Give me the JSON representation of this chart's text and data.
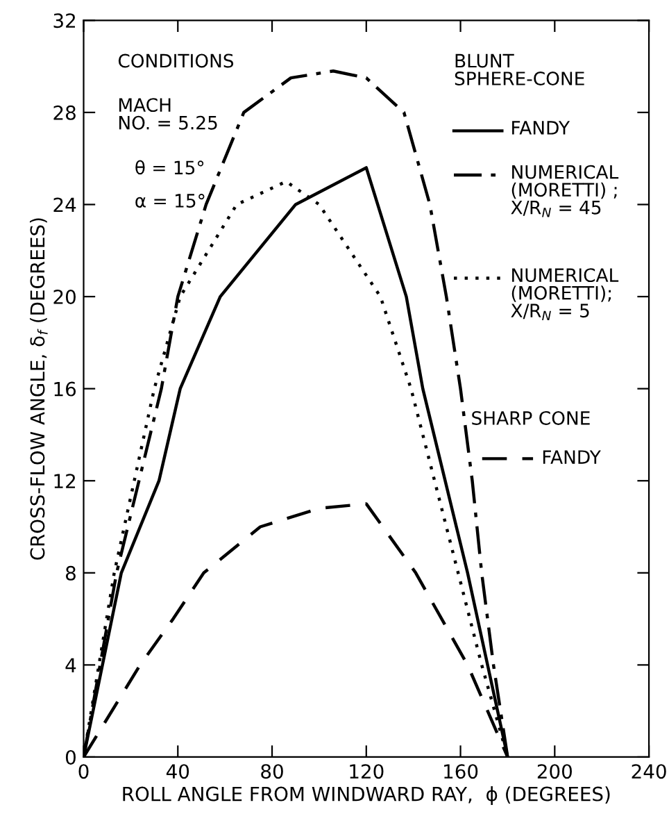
{
  "chart_data": {
    "type": "line",
    "xlabel": "ROLL ANGLE FROM WINDWARD RAY,  ϕ (DEGREES)",
    "ylabel": "CROSS-FLOW ANGLE, δ$_{f}$ (DEGREES)",
    "xlim": [
      0,
      240
    ],
    "xticks": [
      0,
      40,
      80,
      120,
      160,
      200,
      240
    ],
    "ylim": [
      0,
      32
    ],
    "yticks": [
      0,
      4,
      8,
      12,
      16,
      20,
      24,
      28,
      32
    ],
    "grid": false,
    "legend": "top right",
    "marker": "none",
    "annotations": [
      "CONDITIONS",
      "MACH\nNO. = 5.25",
      "θ = 15°",
      "α = 15°",
      "BLUNT\nSPHERE-CONE",
      "SHARP CONE"
    ],
    "series": [
      {
        "name": "FANDY",
        "color": "#000000",
        "line_style": "solid",
        "x": [
          0,
          16,
          32,
          41,
          58,
          90,
          120,
          137,
          144,
          163,
          180
        ],
        "values": [
          0,
          8,
          12,
          16,
          20,
          24,
          25.6,
          20,
          16,
          8,
          0
        ]
      },
      {
        "name": "NUMERICAL\n(MORETTI) ;\nX/R$_{N}$ = 45",
        "color": "#000000",
        "line_style": "dashdot",
        "x": [
          0,
          14,
          33,
          40,
          52,
          68,
          88,
          106,
          120,
          136,
          147,
          154,
          160,
          165,
          169,
          174,
          180
        ],
        "values": [
          0,
          8,
          16,
          20,
          24,
          28,
          29.5,
          29.8,
          29.5,
          28,
          24,
          20,
          16,
          12,
          8,
          4,
          0
        ]
      },
      {
        "name": "NUMERICAL\n(MORETTI);\nX/R$_{N}$ = 5",
        "color": "#000000",
        "line_style": "dotted",
        "x": [
          0,
          13,
          30,
          41,
          65,
          86,
          100,
          126,
          139,
          159,
          169,
          180
        ],
        "values": [
          0,
          8,
          16,
          20,
          24,
          25,
          24,
          20,
          16,
          8,
          4,
          0
        ]
      },
      {
        "name": "FANDY",
        "color": "#000000",
        "line_style": "dashed",
        "x": [
          0,
          24,
          38,
          51,
          75,
          100,
          120,
          141,
          163,
          180
        ],
        "values": [
          0,
          4,
          6,
          8,
          10,
          10.8,
          11,
          8,
          4,
          0
        ]
      }
    ]
  }
}
